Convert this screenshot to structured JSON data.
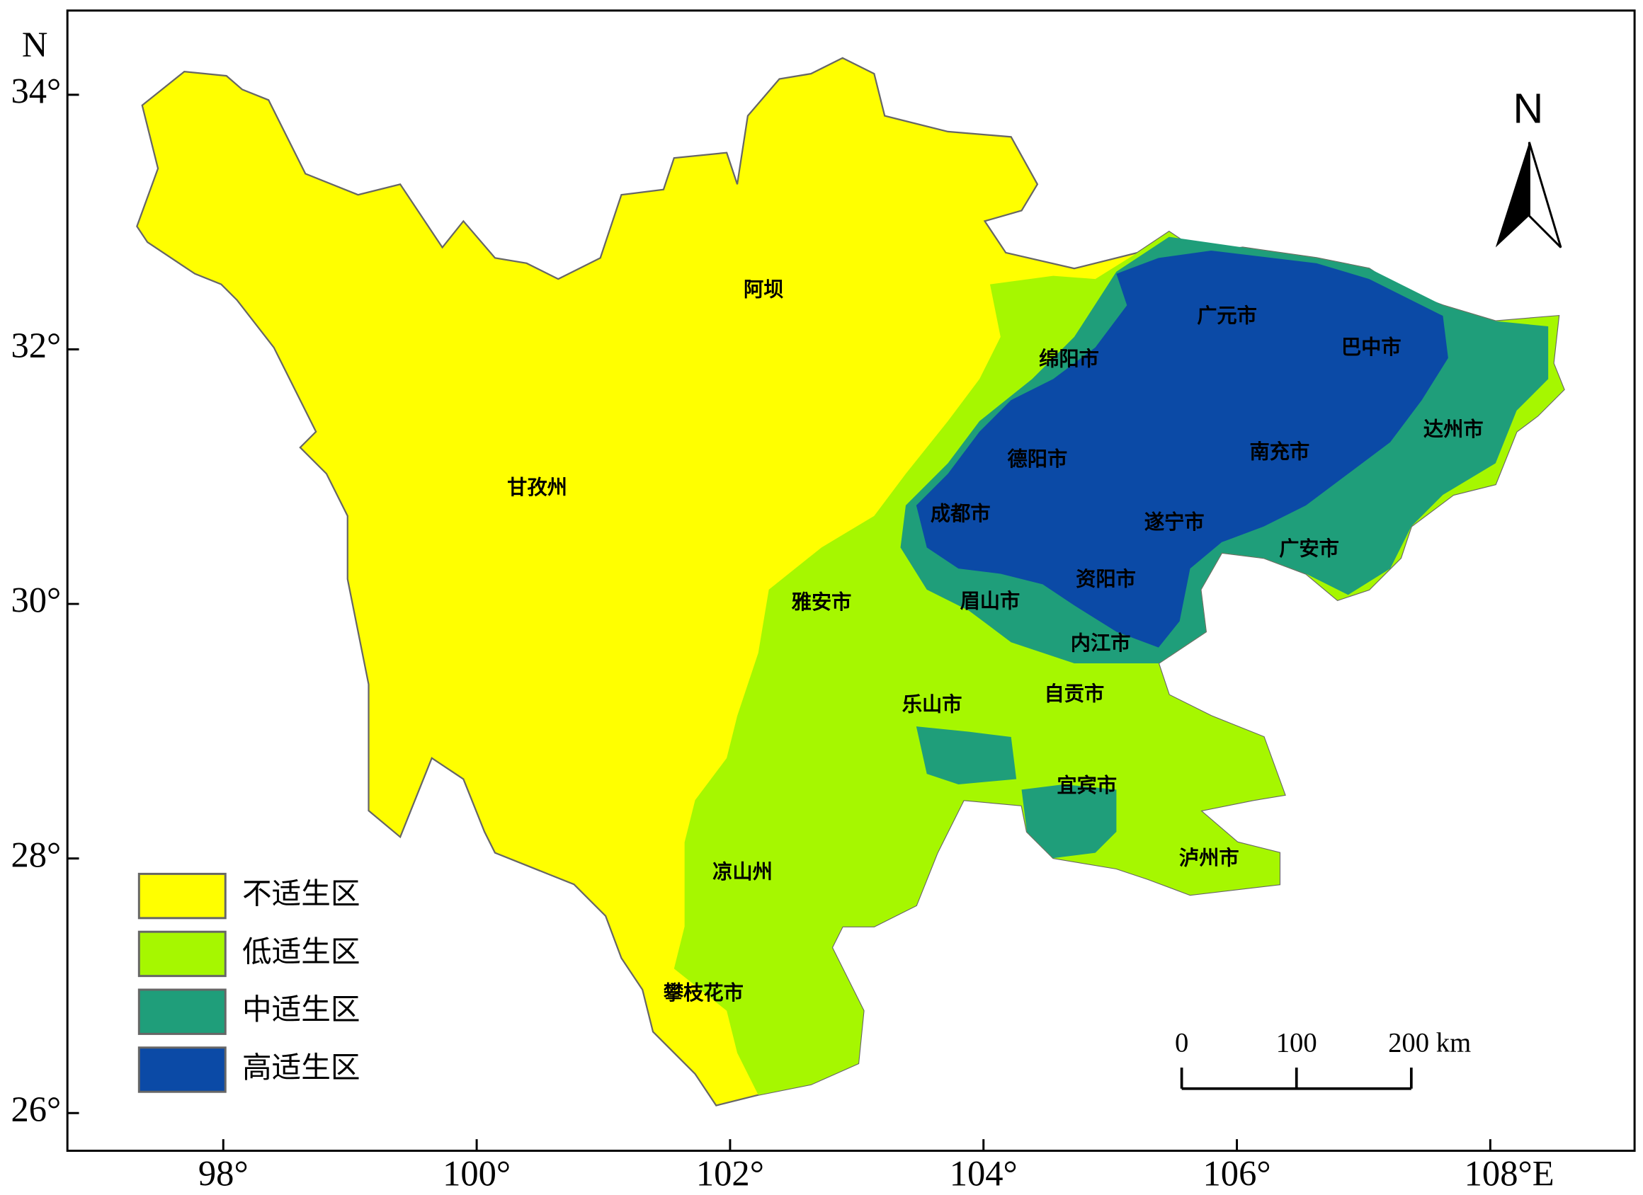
{
  "map": {
    "lat_ticks": [
      {
        "value": 26,
        "label": "26°"
      },
      {
        "value": 28,
        "label": "28°"
      },
      {
        "value": 30,
        "label": "30°"
      },
      {
        "value": 32,
        "label": "32°"
      },
      {
        "value": 34,
        "label": "34°"
      }
    ],
    "lon_ticks": [
      {
        "value": 98,
        "label": "98°"
      },
      {
        "value": 100,
        "label": "100°"
      },
      {
        "value": 102,
        "label": "102°"
      },
      {
        "value": 104,
        "label": "104°"
      },
      {
        "value": 106,
        "label": "106°"
      },
      {
        "value": 108,
        "label": "108°E"
      }
    ],
    "lat_axis_label": "N",
    "regions": [
      "阿坝",
      "甘孜州",
      "广元市",
      "巴中市",
      "绵阳市",
      "达州市",
      "德阳市",
      "南充市",
      "成都市",
      "遂宁市",
      "广安市",
      "资阳市",
      "雅安市",
      "眉山市",
      "内江市",
      "自贡市",
      "乐山市",
      "宜宾市",
      "泸州市",
      "凉山州",
      "攀枝花市"
    ],
    "legend": [
      {
        "label": "不适生区",
        "color": "#ffff00"
      },
      {
        "label": "低适生区",
        "color": "#a6f700"
      },
      {
        "label": "中适生区",
        "color": "#1f9e7a"
      },
      {
        "label": "高适生区",
        "color": "#0b4aa6"
      }
    ],
    "north_arrow": "N",
    "scale_bar": [
      {
        "value": 0,
        "label": "0"
      },
      {
        "value": 100,
        "label": "100"
      },
      {
        "value": 200,
        "label": "200 km"
      }
    ]
  }
}
